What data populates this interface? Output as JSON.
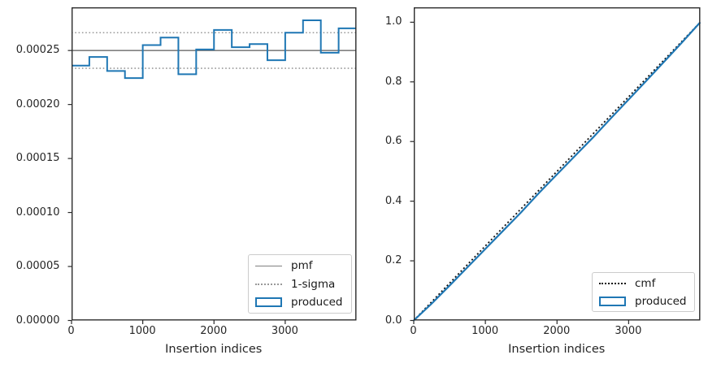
{
  "colors": {
    "produced_blue": "#1f77b4",
    "pmf_gray": "#808080",
    "sigma_gray": "#999999",
    "cmf_black": "#111111",
    "spine": "#2a2a2a",
    "text": "#262626"
  },
  "chart_data": [
    {
      "id": "pmf-histogram",
      "type": "step-histogram",
      "xlabel": "Insertion indices",
      "xlim": [
        0,
        4000
      ],
      "ylim": [
        0,
        0.00029
      ],
      "xtick_values": [
        0,
        1000,
        2000,
        3000
      ],
      "xtick_labels": [
        "0",
        "1000",
        "2000",
        "3000"
      ],
      "ytick_values": [
        0,
        5e-05,
        0.0001,
        0.00015,
        0.0002,
        0.00025
      ],
      "ytick_labels": [
        "0.00000",
        "0.00005",
        "0.00010",
        "0.00015",
        "0.00020",
        "0.00025"
      ],
      "pmf": 0.00025,
      "sigma_upper": 0.0002665,
      "sigma_lower": 0.0002335,
      "bin_edges": [
        0,
        250,
        500,
        750,
        1000,
        1250,
        1500,
        1750,
        2000,
        2250,
        2500,
        2750,
        3000,
        3250,
        3500,
        3750,
        4000
      ],
      "bin_values": [
        0.000236,
        0.000244,
        0.000231,
        0.0002245,
        0.000255,
        0.000262,
        0.000228,
        0.000251,
        0.000269,
        0.000253,
        0.000256,
        0.000241,
        0.0002665,
        0.000278,
        0.000248,
        0.0002705
      ],
      "legend": [
        {
          "label": "pmf",
          "style": "line-gray"
        },
        {
          "label": "1-sigma",
          "style": "dotted-gray"
        },
        {
          "label": "produced",
          "style": "rect-blue"
        }
      ]
    },
    {
      "id": "cmf-plot",
      "type": "line",
      "xlabel": "Insertion indices",
      "xlim": [
        0,
        4000
      ],
      "ylim": [
        0,
        1.05
      ],
      "xtick_values": [
        0,
        1000,
        2000,
        3000
      ],
      "xtick_labels": [
        "0",
        "1000",
        "2000",
        "3000"
      ],
      "ytick_values": [
        0,
        0.2,
        0.4,
        0.6,
        0.8,
        1.0
      ],
      "ytick_labels": [
        "0.0",
        "0.2",
        "0.4",
        "0.6",
        "0.8",
        "1.0"
      ],
      "cmf_x": [
        0,
        4000
      ],
      "cmf_y": [
        0,
        1.0
      ],
      "produced_x": [
        0,
        250,
        500,
        750,
        1000,
        1250,
        1500,
        1750,
        2000,
        2250,
        2500,
        2750,
        3000,
        3250,
        3500,
        3750,
        4000
      ],
      "produced_y": [
        0,
        0.0565,
        0.117,
        0.1785,
        0.24,
        0.3015,
        0.363,
        0.428,
        0.49,
        0.5515,
        0.613,
        0.6775,
        0.741,
        0.8045,
        0.869,
        0.9335,
        1.0
      ],
      "legend": [
        {
          "label": "cmf",
          "style": "dotted-black"
        },
        {
          "label": "produced",
          "style": "rect-blue"
        }
      ]
    }
  ]
}
